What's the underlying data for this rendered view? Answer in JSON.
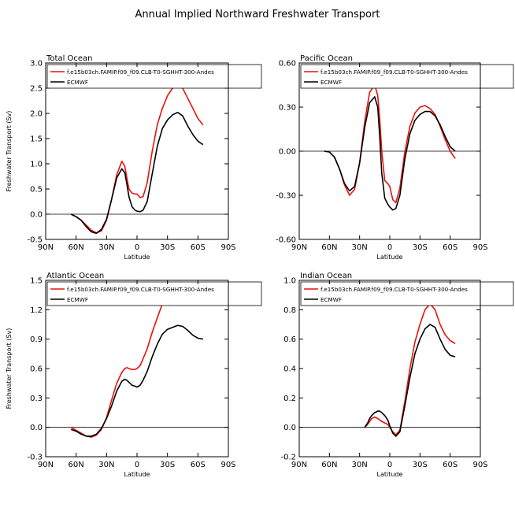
{
  "figure": {
    "title": "Annual Implied Northward Freshwater Transport"
  },
  "chart_data": [
    {
      "type": "line",
      "title": "Total Ocean",
      "xlabel": "Latitude",
      "ylabel": "Freshwater Transport (Sv)",
      "x_ticks": [
        90,
        60,
        30,
        0,
        -30,
        -60,
        -90
      ],
      "x_tick_labels": [
        "90N",
        "60N",
        "30N",
        "0",
        "30S",
        "60S",
        "90S"
      ],
      "xlim": [
        90,
        -90
      ],
      "ylim": [
        -0.5,
        3.0
      ],
      "y_ticks": [
        -0.5,
        0.0,
        0.5,
        1.0,
        1.5,
        2.0,
        2.5,
        3.0
      ],
      "y_tick_labels": [
        "-0.5",
        "0.0",
        "0.5",
        "1.0",
        "1.5",
        "2.0",
        "2.5",
        "3.0"
      ],
      "legend": [
        "f.e15b03ch.FAMIP.f09_f09.CLB-T0-SGHHT-300-Andes",
        "ECMWF"
      ],
      "legend_position": "top",
      "series": [
        {
          "name": "f.e15b03ch.FAMIP.f09_f09.CLB-T0-SGHHT-300-Andes",
          "color": "#e8120c",
          "x": [
            65,
            60,
            55,
            50,
            45,
            40,
            35,
            30,
            25,
            20,
            15,
            12,
            10,
            8,
            5,
            2,
            0,
            -3,
            -6,
            -10,
            -15,
            -20,
            -25,
            -30,
            -35,
            -40,
            -45,
            -50,
            -55,
            -60,
            -65
          ],
          "y": [
            0.0,
            -0.05,
            -0.12,
            -0.22,
            -0.32,
            -0.37,
            -0.33,
            -0.12,
            0.3,
            0.78,
            1.05,
            0.95,
            0.72,
            0.5,
            0.42,
            0.4,
            0.4,
            0.33,
            0.35,
            0.62,
            1.25,
            1.78,
            2.1,
            2.35,
            2.5,
            2.57,
            2.5,
            2.3,
            2.1,
            1.9,
            1.77
          ]
        },
        {
          "name": "ECMWF",
          "color": "#000000",
          "x": [
            65,
            60,
            55,
            50,
            45,
            40,
            35,
            30,
            25,
            20,
            15,
            12,
            10,
            8,
            5,
            2,
            0,
            -3,
            -6,
            -10,
            -15,
            -20,
            -25,
            -30,
            -35,
            -40,
            -45,
            -50,
            -55,
            -60,
            -65
          ],
          "y": [
            0.0,
            -0.05,
            -0.12,
            -0.25,
            -0.35,
            -0.38,
            -0.3,
            -0.1,
            0.3,
            0.72,
            0.9,
            0.82,
            0.6,
            0.35,
            0.15,
            0.08,
            0.06,
            0.05,
            0.08,
            0.25,
            0.8,
            1.35,
            1.7,
            1.87,
            1.97,
            2.02,
            1.95,
            1.75,
            1.58,
            1.45,
            1.38
          ]
        }
      ]
    },
    {
      "type": "line",
      "title": "Pacific Ocean",
      "xlabel": "Latitude",
      "ylabel": "",
      "x_ticks": [
        90,
        60,
        30,
        0,
        -30,
        -60,
        -90
      ],
      "x_tick_labels": [
        "90N",
        "60N",
        "30N",
        "0",
        "30S",
        "60S",
        "90S"
      ],
      "xlim": [
        90,
        -90
      ],
      "ylim": [
        -0.6,
        0.6
      ],
      "y_ticks": [
        -0.6,
        -0.3,
        0.0,
        0.3,
        0.6
      ],
      "y_tick_labels": [
        "-0.60",
        "-0.30",
        "0.00",
        "0.30",
        "0.60"
      ],
      "legend": [
        "f.e15b03ch.FAMIP.f09_f09.CLB-T0-SGHHT-300-Andes",
        "ECMWF"
      ],
      "legend_position": "top",
      "series": [
        {
          "name": "f.e15b03ch.FAMIP.f09_f09.CLB-T0-SGHHT-300-Andes",
          "color": "#e8120c",
          "x": [
            65,
            60,
            55,
            50,
            45,
            40,
            35,
            30,
            25,
            20,
            15,
            12,
            10,
            8,
            5,
            2,
            0,
            -3,
            -6,
            -10,
            -15,
            -20,
            -25,
            -30,
            -35,
            -40,
            -45,
            -50,
            -55,
            -60,
            -65
          ],
          "y": [
            0.0,
            -0.005,
            -0.04,
            -0.12,
            -0.23,
            -0.3,
            -0.26,
            -0.08,
            0.2,
            0.4,
            0.45,
            0.38,
            0.22,
            0.0,
            -0.2,
            -0.22,
            -0.24,
            -0.33,
            -0.35,
            -0.25,
            0.0,
            0.17,
            0.26,
            0.3,
            0.31,
            0.29,
            0.25,
            0.17,
            0.08,
            0.0,
            -0.05
          ]
        },
        {
          "name": "ECMWF",
          "color": "#000000",
          "x": [
            65,
            60,
            55,
            50,
            45,
            40,
            35,
            30,
            25,
            20,
            15,
            12,
            10,
            8,
            5,
            2,
            0,
            -3,
            -6,
            -10,
            -15,
            -20,
            -25,
            -30,
            -35,
            -40,
            -45,
            -50,
            -55,
            -60,
            -65
          ],
          "y": [
            0.0,
            -0.005,
            -0.04,
            -0.12,
            -0.22,
            -0.27,
            -0.24,
            -0.08,
            0.16,
            0.33,
            0.37,
            0.3,
            0.1,
            -0.15,
            -0.32,
            -0.36,
            -0.38,
            -0.4,
            -0.39,
            -0.3,
            -0.05,
            0.12,
            0.21,
            0.25,
            0.27,
            0.27,
            0.24,
            0.18,
            0.1,
            0.03,
            0.0
          ]
        }
      ]
    },
    {
      "type": "line",
      "title": "Atlantic Ocean",
      "xlabel": "Latitude",
      "ylabel": "Freshwater Transport (Sv)",
      "x_ticks": [
        90,
        60,
        30,
        0,
        -30,
        -60,
        -90
      ],
      "x_tick_labels": [
        "90N",
        "60N",
        "30N",
        "0",
        "30S",
        "60S",
        "90S"
      ],
      "xlim": [
        90,
        -90
      ],
      "ylim": [
        -0.3,
        1.5
      ],
      "y_ticks": [
        -0.3,
        0.0,
        0.3,
        0.6,
        0.9,
        1.2,
        1.5
      ],
      "y_tick_labels": [
        "-0.3",
        "0.0",
        "0.3",
        "0.6",
        "0.9",
        "1.2",
        "1.5"
      ],
      "legend": [
        "f.e15b03ch.FAMIP.f09_f09.CLB-T0-SGHHT-300-Andes",
        "ECMWF"
      ],
      "legend_position": "top",
      "series": [
        {
          "name": "f.e15b03ch.FAMIP.f09_f09.CLB-T0-SGHHT-300-Andes",
          "color": "#e8120c",
          "x": [
            65,
            60,
            55,
            50,
            45,
            40,
            35,
            30,
            25,
            20,
            15,
            12,
            10,
            8,
            5,
            2,
            0,
            -3,
            -6,
            -10,
            -15,
            -20,
            -25,
            -30,
            -35,
            -40,
            -45,
            -50,
            -55,
            -60,
            -65
          ],
          "y": [
            0.0,
            -0.03,
            -0.06,
            -0.09,
            -0.1,
            -0.08,
            -0.02,
            0.1,
            0.28,
            0.45,
            0.56,
            0.6,
            0.61,
            0.6,
            0.59,
            0.59,
            0.6,
            0.63,
            0.7,
            0.8,
            0.97,
            1.12,
            1.26,
            1.36,
            1.42,
            1.45,
            1.43,
            1.37,
            1.3,
            1.26,
            1.25
          ]
        },
        {
          "name": "ECMWF",
          "color": "#000000",
          "x": [
            65,
            60,
            55,
            50,
            45,
            40,
            35,
            30,
            25,
            20,
            15,
            12,
            10,
            8,
            5,
            2,
            0,
            -3,
            -6,
            -10,
            -15,
            -20,
            -25,
            -30,
            -35,
            -40,
            -45,
            -50,
            -55,
            -60,
            -65
          ],
          "y": [
            -0.02,
            -0.04,
            -0.07,
            -0.09,
            -0.09,
            -0.07,
            -0.01,
            0.09,
            0.22,
            0.37,
            0.47,
            0.49,
            0.48,
            0.46,
            0.43,
            0.42,
            0.41,
            0.43,
            0.48,
            0.57,
            0.72,
            0.85,
            0.95,
            1.0,
            1.02,
            1.04,
            1.03,
            0.99,
            0.94,
            0.91,
            0.9
          ]
        }
      ]
    },
    {
      "type": "line",
      "title": "Indian Ocean",
      "xlabel": "Latitude",
      "ylabel": "",
      "x_ticks": [
        90,
        60,
        30,
        0,
        -30,
        -60,
        -90
      ],
      "x_tick_labels": [
        "90N",
        "60N",
        "30N",
        "0",
        "30S",
        "60S",
        "90S"
      ],
      "xlim": [
        90,
        -90
      ],
      "ylim": [
        -0.2,
        1.0
      ],
      "y_ticks": [
        -0.2,
        0.0,
        0.2,
        0.4,
        0.6,
        0.8,
        1.0
      ],
      "y_tick_labels": [
        "-0.2",
        "0.0",
        "0.2",
        "0.4",
        "0.6",
        "0.8",
        "1.0"
      ],
      "legend": [
        "f.e15b03ch.FAMIP.f09_f09.CLB-T0-SGHHT-300-Andes",
        "ECMWF"
      ],
      "legend_position": "top",
      "series": [
        {
          "name": "f.e15b03ch.FAMIP.f09_f09.CLB-T0-SGHHT-300-Andes",
          "color": "#e8120c",
          "x": [
            25,
            22,
            20,
            18,
            15,
            12,
            10,
            8,
            5,
            2,
            0,
            -3,
            -6,
            -10,
            -15,
            -20,
            -25,
            -30,
            -35,
            -40,
            -45,
            -50,
            -55,
            -60,
            -65
          ],
          "y": [
            0.0,
            0.02,
            0.04,
            0.06,
            0.07,
            0.06,
            0.05,
            0.04,
            0.03,
            0.02,
            0.0,
            -0.03,
            -0.05,
            -0.02,
            0.18,
            0.4,
            0.58,
            0.7,
            0.8,
            0.84,
            0.8,
            0.7,
            0.63,
            0.59,
            0.57
          ]
        },
        {
          "name": "ECMWF",
          "color": "#000000",
          "x": [
            25,
            22,
            20,
            18,
            15,
            12,
            10,
            8,
            5,
            2,
            0,
            -3,
            -6,
            -10,
            -15,
            -20,
            -25,
            -30,
            -35,
            -40,
            -45,
            -50,
            -55,
            -60,
            -65
          ],
          "y": [
            0.0,
            0.03,
            0.06,
            0.08,
            0.1,
            0.11,
            0.11,
            0.1,
            0.08,
            0.05,
            0.01,
            -0.04,
            -0.06,
            -0.03,
            0.15,
            0.34,
            0.5,
            0.6,
            0.67,
            0.7,
            0.68,
            0.6,
            0.53,
            0.49,
            0.48
          ]
        }
      ]
    }
  ]
}
